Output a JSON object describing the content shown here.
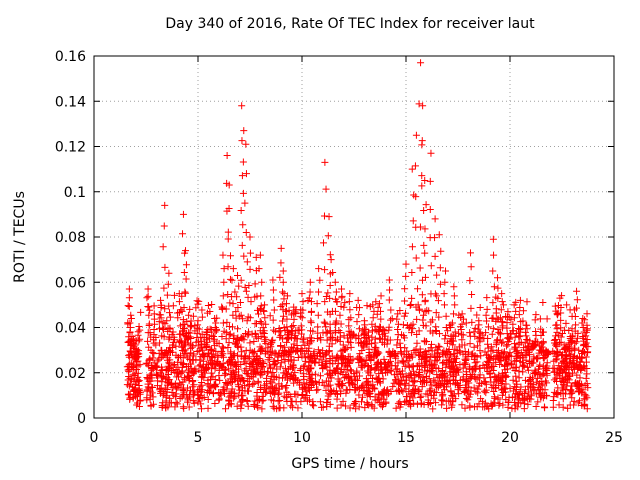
{
  "chart_data": {
    "type": "scatter",
    "title": "Day 340 of 2016, Rate Of TEC Index for receiver laut",
    "xlabel": "GPS time / hours",
    "ylabel": "ROTI / TECUs",
    "xlim": [
      0,
      25
    ],
    "ylim": [
      0,
      0.16
    ],
    "xticks": [
      0,
      5,
      10,
      15,
      20,
      25
    ],
    "yticks": [
      0,
      0.02,
      0.04,
      0.06,
      0.08,
      0.1,
      0.12,
      0.14,
      0.16
    ],
    "xtick_labels": [
      "0",
      "5",
      "10",
      "15",
      "20",
      "25"
    ],
    "ytick_labels": [
      "0",
      "0.02",
      "0.04",
      "0.06",
      "0.08",
      "0.1",
      "0.12",
      "0.14",
      "0.16"
    ],
    "grid": true,
    "marker": "+",
    "color": "#ff0000",
    "series": [
      {
        "name": "ROTI",
        "x": [
          1.7,
          1.8,
          1.9,
          2.0,
          2.1,
          2.6,
          2.9,
          3.2,
          3.4,
          3.6,
          3.8,
          4.1,
          4.3,
          4.4,
          4.6,
          5.0,
          5.4,
          5.8,
          6.2,
          6.4,
          6.5,
          6.7,
          6.9,
          7.1,
          7.2,
          7.3,
          7.5,
          7.8,
          8.0,
          8.2,
          8.6,
          9.0,
          9.1,
          9.3,
          9.6,
          10.0,
          10.4,
          10.8,
          11.1,
          11.3,
          11.4,
          11.6,
          11.9,
          12.3,
          12.7,
          13.0,
          13.4,
          13.8,
          14.2,
          14.6,
          15.0,
          15.3,
          15.5,
          15.7,
          15.8,
          15.9,
          16.2,
          16.4,
          16.6,
          16.9,
          17.3,
          17.7,
          18.1,
          18.5,
          18.9,
          19.2,
          19.4,
          19.6,
          19.9,
          20.2,
          20.5,
          20.8,
          21.1,
          21.5,
          21.8,
          22.2,
          22.4,
          22.7,
          22.9,
          23.2,
          23.5,
          23.7
        ],
        "y": [
          0.057,
          0.044,
          0.035,
          0.026,
          0.018,
          0.057,
          0.046,
          0.052,
          0.094,
          0.064,
          0.038,
          0.055,
          0.09,
          0.074,
          0.048,
          0.043,
          0.038,
          0.044,
          0.072,
          0.116,
          0.103,
          0.066,
          0.063,
          0.138,
          0.127,
          0.121,
          0.08,
          0.071,
          0.072,
          0.05,
          0.061,
          0.075,
          0.065,
          0.054,
          0.049,
          0.055,
          0.06,
          0.066,
          0.113,
          0.089,
          0.07,
          0.06,
          0.057,
          0.055,
          0.052,
          0.043,
          0.05,
          0.054,
          0.061,
          0.046,
          0.068,
          0.11,
          0.125,
          0.157,
          0.138,
          0.105,
          0.117,
          0.088,
          0.081,
          0.065,
          0.058,
          0.046,
          0.073,
          0.043,
          0.048,
          0.079,
          0.062,
          0.055,
          0.047,
          0.05,
          0.052,
          0.041,
          0.033,
          0.03,
          0.028,
          0.041,
          0.053,
          0.031,
          0.036,
          0.056,
          0.044,
          0.041
        ]
      }
    ]
  }
}
